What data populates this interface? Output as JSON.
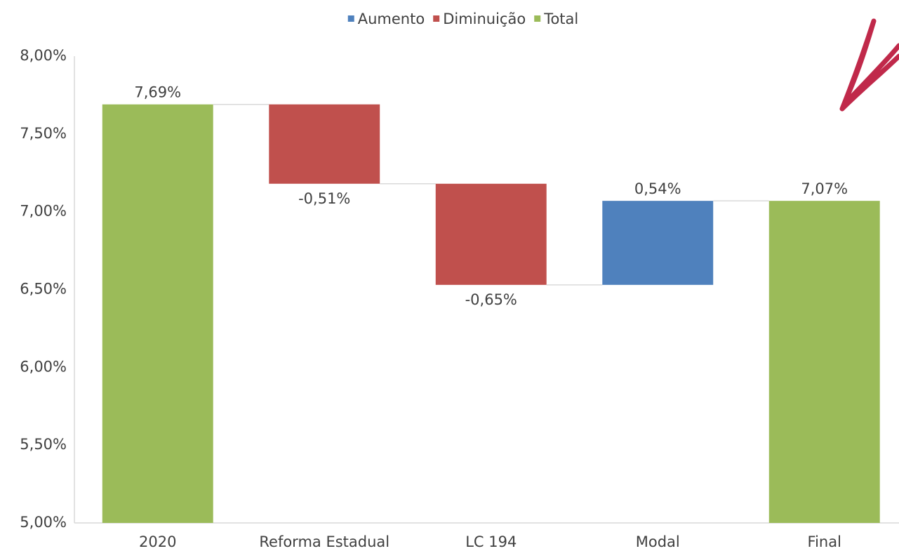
{
  "chart_data": {
    "type": "waterfall",
    "categories": [
      "2020",
      "Reforma Estadual",
      "LC 194",
      "Modal",
      "Final"
    ],
    "values": [
      7.69,
      -0.51,
      -0.65,
      0.54,
      7.07
    ],
    "value_labels": [
      "7,69%",
      "-0,51%",
      "-0,65%",
      "0,54%",
      "7,07%"
    ],
    "totals": [
      true,
      false,
      false,
      false,
      true
    ],
    "legend": [
      {
        "name": "Aumento",
        "color": "#4f81bd"
      },
      {
        "name": "Diminuição",
        "color": "#c0504d"
      },
      {
        "name": "Total",
        "color": "#9bbb59"
      }
    ],
    "ylim": [
      5,
      8
    ],
    "yticks": [
      {
        "value": 5,
        "label": "5,00%"
      },
      {
        "value": 5.5,
        "label": "5,50%"
      },
      {
        "value": 6,
        "label": "6,00%"
      },
      {
        "value": 6.5,
        "label": "6,50%"
      },
      {
        "value": 7,
        "label": "7,00%"
      },
      {
        "value": 7.5,
        "label": "7,50%"
      },
      {
        "value": 8,
        "label": "8,00%"
      }
    ]
  }
}
